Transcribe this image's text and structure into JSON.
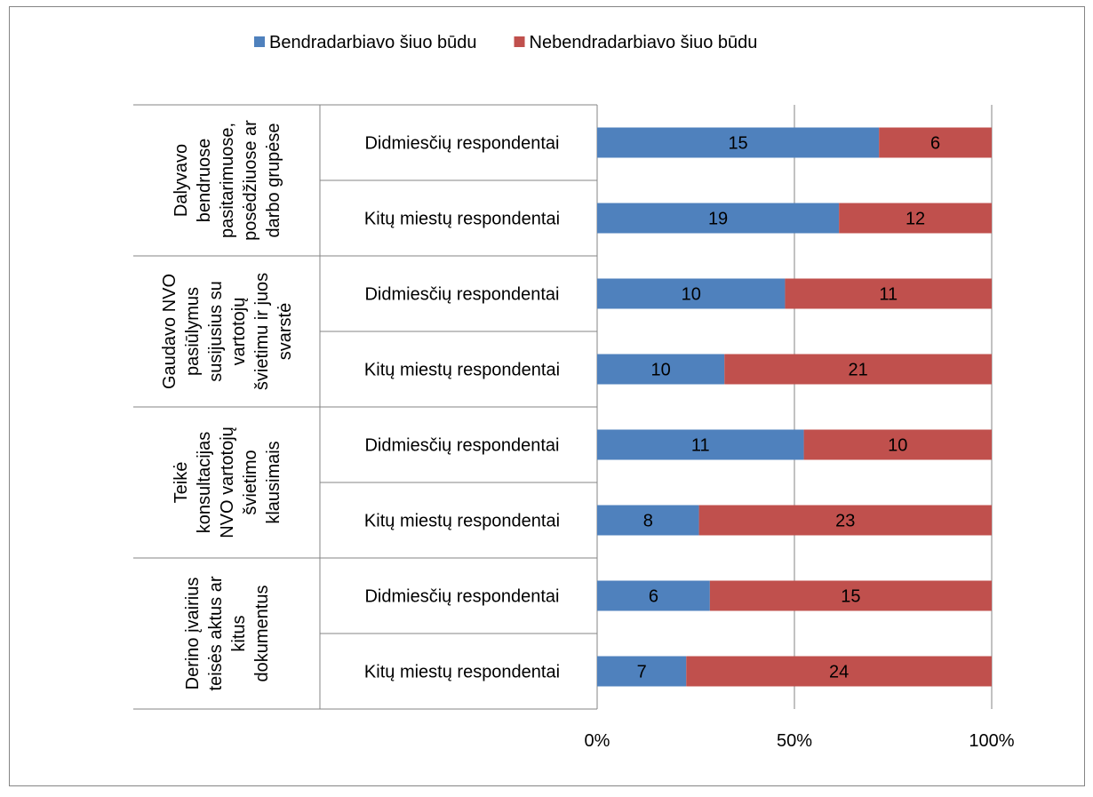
{
  "chart_data": {
    "type": "bar",
    "orientation": "horizontal",
    "stacking": "percent",
    "legend": {
      "position": "top",
      "items": [
        {
          "label": "Bendradarbiavo šiuo būdu",
          "color": "#4f81bd"
        },
        {
          "label": "Nebendradarbiavo šiuo būdu",
          "color": "#c0504d"
        }
      ]
    },
    "groups": [
      {
        "label_lines": [
          "Dalyvavo",
          "bendruose",
          "pasitarimuose,",
          "posėdžiuose ar",
          "darbo grupėse"
        ],
        "rows": [
          {
            "label": "Didmiesčių respondentai",
            "values": [
              15,
              6
            ]
          },
          {
            "label": "Kitų miestų respondentai",
            "values": [
              19,
              12
            ]
          }
        ]
      },
      {
        "label_lines": [
          "Gaudavo NVO",
          "pasiūlymus",
          "susijusius su",
          "vartotojų",
          "švietimu ir juos",
          "svarstė"
        ],
        "rows": [
          {
            "label": "Didmiesčių respondentai",
            "values": [
              10,
              11
            ]
          },
          {
            "label": "Kitų miestų respondentai",
            "values": [
              10,
              21
            ]
          }
        ]
      },
      {
        "label_lines": [
          "Teikė",
          "konsultacijas",
          "NVO vartotojų",
          "švietimo",
          "klausimais"
        ],
        "rows": [
          {
            "label": "Didmiesčių respondentai",
            "values": [
              11,
              10
            ]
          },
          {
            "label": "Kitų miestų respondentai",
            "values": [
              8,
              23
            ]
          }
        ]
      },
      {
        "label_lines": [
          "Derino įvairius",
          "teisės aktus ar",
          "kitus",
          "dokumentus"
        ],
        "rows": [
          {
            "label": "Didmiesčių respondentai",
            "values": [
              6,
              15
            ]
          },
          {
            "label": "Kitų miestų respondentai",
            "values": [
              7,
              24
            ]
          }
        ]
      }
    ],
    "x_ticks": [
      "0%",
      "50%",
      "100%"
    ],
    "xlim": [
      0,
      100
    ],
    "grid": true
  }
}
